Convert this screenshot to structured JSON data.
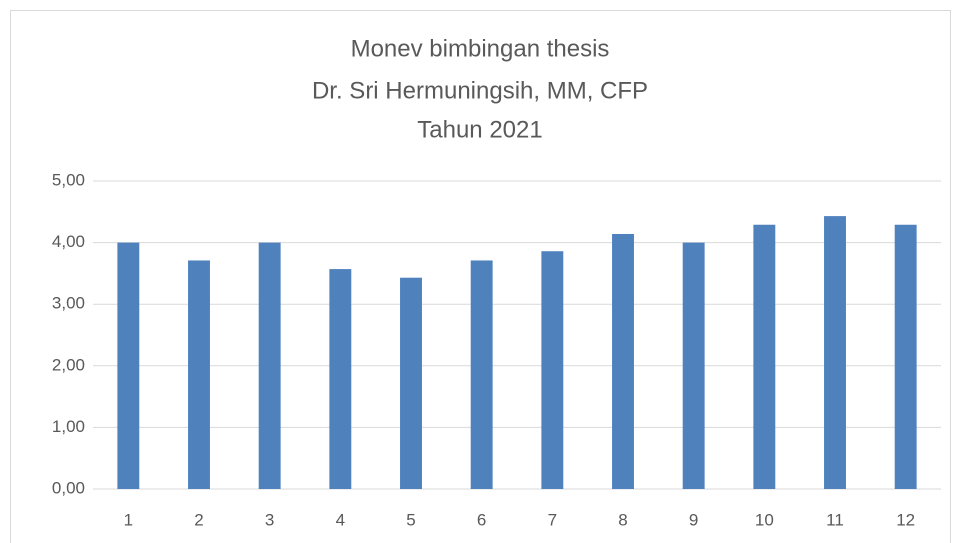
{
  "chart_data": {
    "type": "bar",
    "title": [
      "Monev bimbingan thesis",
      "Dr. Sri Hermuningsih, MM, CFP",
      "Tahun 2021"
    ],
    "categories": [
      "1",
      "2",
      "3",
      "4",
      "5",
      "6",
      "7",
      "8",
      "9",
      "10",
      "11",
      "12"
    ],
    "values": [
      4.0,
      3.71,
      4.0,
      3.57,
      3.43,
      3.71,
      3.86,
      4.14,
      4.0,
      4.29,
      4.43,
      4.29
    ],
    "color": "#4f81bd",
    "ylim": [
      0,
      5
    ],
    "yticks": [
      {
        "value": 0,
        "label": "0,00"
      },
      {
        "value": 1,
        "label": "1,00"
      },
      {
        "value": 2,
        "label": "2,00"
      },
      {
        "value": 3,
        "label": "3,00"
      },
      {
        "value": 4,
        "label": "4,00"
      },
      {
        "value": 5,
        "label": "5,00"
      }
    ],
    "grid": true
  }
}
